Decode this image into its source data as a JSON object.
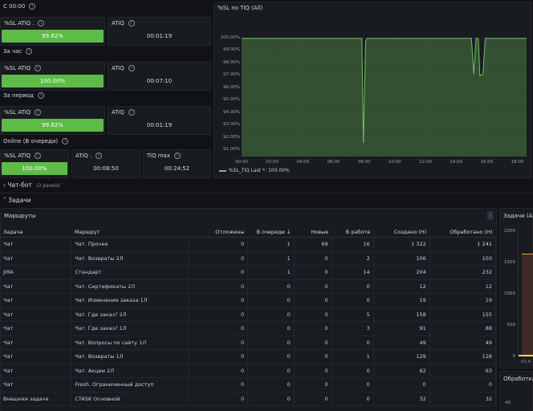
{
  "top": {
    "groups": [
      {
        "label": "С 00:00",
        "left_title": "%SL ATiQ .",
        "left_value": "99.82%",
        "left_fill": 0.998,
        "right_title": "ATiQ",
        "right_value": "00:01:19"
      },
      {
        "label": "За час",
        "left_title": "%SL ATiQ",
        "left_value": "100.00%",
        "left_fill": 1.0,
        "right_title": "ATiQ",
        "right_value": "00:07:10"
      },
      {
        "label": "За период",
        "left_title": "%SL ATiQ",
        "left_value": "99.82%",
        "left_fill": 0.998,
        "right_title": "ATiQ",
        "right_value": "00:01:19"
      }
    ],
    "online": {
      "label": "Online (В очереди)",
      "sl_title": "%SL ATiQ",
      "sl_value": "100.00%",
      "sl_fill": 1.0,
      "atiq_title": "ATiQ .",
      "atiq_value": "00:08:50",
      "tiqmax_title": "TiQ max",
      "tiqmax_value": "00:24:52"
    }
  },
  "chart_panel": {
    "title": "%SL по TiQ (All)"
  },
  "chart_data": {
    "type": "line",
    "title": "%SL по TiQ (All)",
    "x_ticks": [
      "00:00",
      "02:00",
      "04:00",
      "06:00",
      "08:00",
      "10:00",
      "12:00",
      "14:00",
      "16:00",
      "18:00"
    ],
    "y_ticks": [
      "100.00%",
      "99.00%",
      "98.00%",
      "97.00%",
      "96.00%",
      "95.00%",
      "94.00%",
      "93.00%",
      "92.00%",
      "91.00%"
    ],
    "ylim": [
      90.5,
      100.3
    ],
    "series": [
      {
        "name": "%SL_TiQ",
        "color": "#73bf69",
        "points": [
          [
            0,
            100
          ],
          [
            7.85,
            100
          ],
          [
            7.95,
            91.6
          ],
          [
            8.1,
            99.8
          ],
          [
            8.2,
            100
          ],
          [
            15.0,
            100
          ],
          [
            15.15,
            97.1
          ],
          [
            15.3,
            100
          ],
          [
            15.45,
            100
          ],
          [
            15.55,
            97.0
          ],
          [
            15.75,
            97.1
          ],
          [
            15.9,
            100
          ],
          [
            18.6,
            100
          ]
        ]
      }
    ],
    "legend": "%SL_TiQ  Last *: 100.00%",
    "legend_position": "bottom-left"
  },
  "collapsed_row": {
    "label": "Чат-бот",
    "count": "(3 panels)"
  },
  "tasks_row": {
    "label": "Задачи"
  },
  "routes": {
    "title": "Маршруты",
    "columns": [
      "Задача",
      "Маршрут",
      "Отложены",
      "В очереди ↓",
      "Новые",
      "В работе",
      "Создано (Н)",
      "Обработано (Н)"
    ],
    "rows": [
      [
        "Чат",
        "Чат. Прочее",
        "0",
        "1",
        "69",
        "16",
        "1 322",
        "1 241"
      ],
      [
        "Чат",
        "Чат. Возвраты 2Л",
        "0",
        "1",
        "0",
        "2",
        "106",
        "103"
      ],
      [
        "JIRA",
        "Стандарт",
        "0",
        "1",
        "0",
        "14",
        "204",
        "232"
      ],
      [
        "Чат",
        "Чат. Сертификаты 2Л",
        "0",
        "0",
        "0",
        "0",
        "12",
        "12"
      ],
      [
        "Чат",
        "Чат. Изменение заказа 1Л",
        "0",
        "0",
        "0",
        "0",
        "19",
        "19"
      ],
      [
        "Чат",
        "Чат. Где заказ? 2Л",
        "0",
        "0",
        "0",
        "5",
        "158",
        "155"
      ],
      [
        "Чат",
        "Чат. Где заказ? 1Л",
        "0",
        "0",
        "0",
        "3",
        "91",
        "88"
      ],
      [
        "Чат",
        "Чат. Вопросы по сайту 1Л",
        "0",
        "0",
        "0",
        "0",
        "49",
        "49"
      ],
      [
        "Чат",
        "Чат. Возвраты 1Л",
        "0",
        "0",
        "0",
        "1",
        "129",
        "128"
      ],
      [
        "Чат",
        "Чат. Акции 2Л",
        "0",
        "0",
        "0",
        "0",
        "62",
        "63"
      ],
      [
        "Чат",
        "Fresh. Ограниченный доступ",
        "0",
        "0",
        "0",
        "0",
        "0",
        "0"
      ],
      [
        "Внешняя задача",
        "CTASK Основной",
        "0",
        "0",
        "0",
        "0",
        "32",
        "32"
      ]
    ]
  },
  "side_panel": {
    "title": "Задачи (All)",
    "y_ticks": [
      "2000",
      "1500",
      "1000",
      "500",
      "0"
    ],
    "x_tick": "01:0",
    "bottom_title": "Обработка",
    "bottom_tick": "40"
  }
}
